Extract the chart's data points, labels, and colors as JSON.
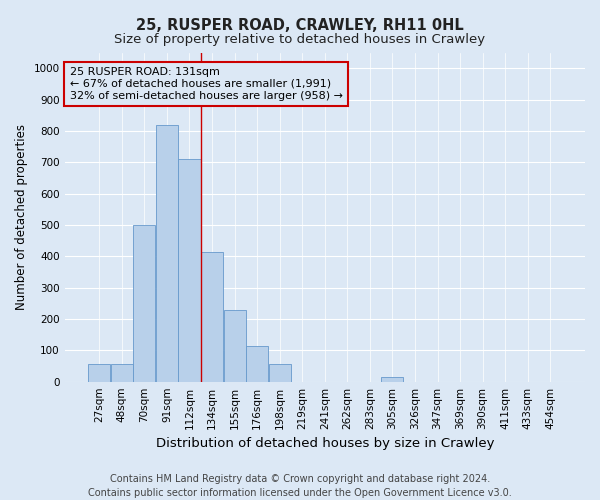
{
  "title": "25, RUSPER ROAD, CRAWLEY, RH11 0HL",
  "subtitle": "Size of property relative to detached houses in Crawley",
  "xlabel": "Distribution of detached houses by size in Crawley",
  "ylabel": "Number of detached properties",
  "footer_line1": "Contains HM Land Registry data © Crown copyright and database right 2024.",
  "footer_line2": "Contains public sector information licensed under the Open Government Licence v3.0.",
  "bar_labels": [
    "27sqm",
    "48sqm",
    "70sqm",
    "91sqm",
    "112sqm",
    "134sqm",
    "155sqm",
    "176sqm",
    "198sqm",
    "219sqm",
    "241sqm",
    "262sqm",
    "283sqm",
    "305sqm",
    "326sqm",
    "347sqm",
    "369sqm",
    "390sqm",
    "411sqm",
    "433sqm",
    "454sqm"
  ],
  "bar_values": [
    55,
    55,
    500,
    820,
    710,
    415,
    228,
    115,
    55,
    0,
    0,
    0,
    0,
    15,
    0,
    0,
    0,
    0,
    0,
    0,
    0
  ],
  "bar_color": "#b8d0ea",
  "bar_edge_color": "#6699cc",
  "annotation_line1": "25 RUSPER ROAD: 131sqm",
  "annotation_line2": "← 67% of detached houses are smaller (1,991)",
  "annotation_line3": "32% of semi-detached houses are larger (958) →",
  "annotation_box_color": "#cc0000",
  "vline_x": 4.5,
  "vline_color": "#cc0000",
  "ylim": [
    0,
    1050
  ],
  "yticks": [
    0,
    100,
    200,
    300,
    400,
    500,
    600,
    700,
    800,
    900,
    1000
  ],
  "bg_color": "#dce8f5",
  "grid_color": "#ffffff",
  "title_fontsize": 10.5,
  "subtitle_fontsize": 9.5,
  "xlabel_fontsize": 9.5,
  "ylabel_fontsize": 8.5,
  "tick_fontsize": 7.5,
  "annotation_fontsize": 8,
  "footer_fontsize": 7
}
